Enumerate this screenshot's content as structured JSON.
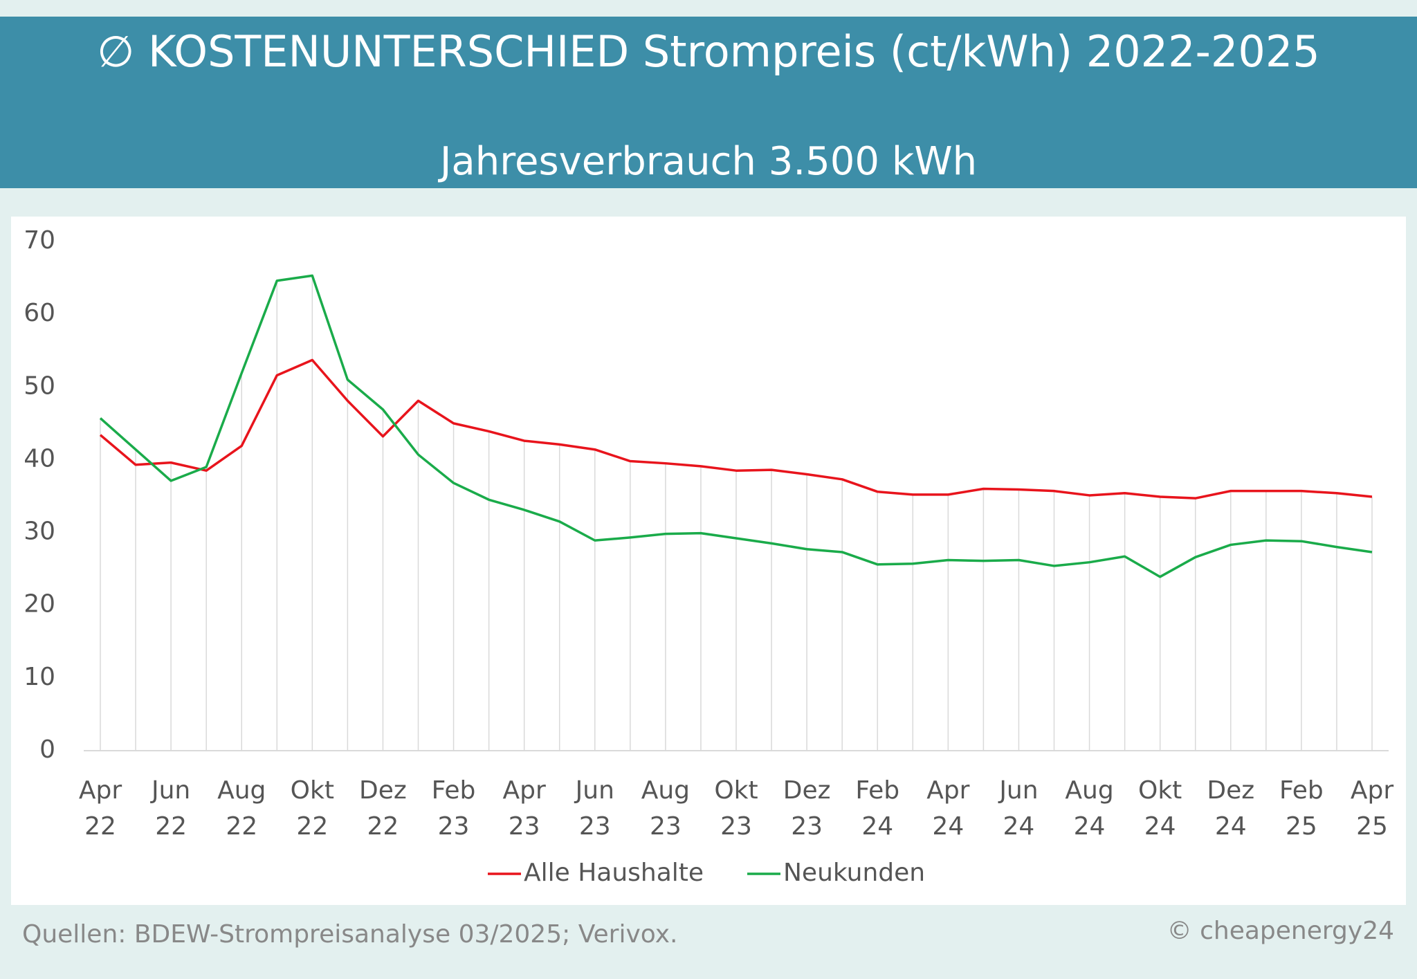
{
  "chart_data": {
    "type": "line",
    "title": "∅ KOSTENUNTERSCHIED Strompreis (ct/kWh) 2022-2025",
    "subtitle": "Jahresverbrauch 3.500 kWh",
    "source": "Quellen: BDEW-Strompreisanalyse 03/2025; Verivox.",
    "credit": "© cheapenergy24",
    "categories": [
      "Apr 22",
      null,
      "Jun 22",
      null,
      "Aug 22",
      null,
      "Okt 22",
      null,
      "Dez 22",
      null,
      "Feb 23",
      null,
      "Apr 23",
      null,
      "Jun 23",
      null,
      "Aug 23",
      null,
      "Okt 23",
      null,
      "Dez 23",
      null,
      "Feb 24",
      null,
      "Apr 24",
      null,
      "Jun 24",
      null,
      "Aug 24",
      null,
      "Okt 24",
      null,
      "Dez 24",
      null,
      "Feb 25",
      null,
      "Apr 25"
    ],
    "series": [
      {
        "name": "Alle Haushalte",
        "color": "#e8141c",
        "values": [
          43.4,
          39.3,
          39.6,
          38.5,
          41.9,
          51.6,
          53.7,
          48.1,
          43.2,
          48.1,
          45.0,
          43.9,
          42.6,
          42.1,
          41.4,
          39.8,
          39.5,
          39.1,
          38.5,
          38.6,
          38.0,
          37.3,
          35.6,
          35.2,
          35.2,
          36.0,
          35.9,
          35.7,
          35.1,
          35.4,
          34.9,
          34.7,
          35.7,
          35.7,
          35.7,
          35.4,
          34.9
        ]
      },
      {
        "name": "Neukunden",
        "color": "#1aab4a",
        "values": [
          45.7,
          41.4,
          37.1,
          39.0,
          51.9,
          64.6,
          65.3,
          51.0,
          46.9,
          40.7,
          36.8,
          34.5,
          33.1,
          31.5,
          28.9,
          29.3,
          29.8,
          29.9,
          29.2,
          28.5,
          27.7,
          27.3,
          25.6,
          25.7,
          26.2,
          26.1,
          26.2,
          25.4,
          25.9,
          26.7,
          23.9,
          26.6,
          28.3,
          28.9,
          28.8,
          28.0,
          27.3
        ]
      }
    ],
    "ylim": [
      0,
      70
    ],
    "yticks": [
      0,
      10,
      20,
      30,
      40,
      50,
      60,
      70
    ],
    "legend": "bottom"
  }
}
